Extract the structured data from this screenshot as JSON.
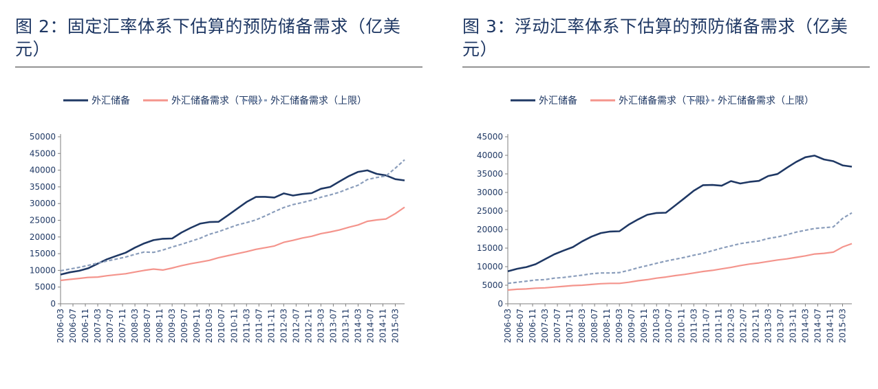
{
  "figures": [
    {
      "title": "图 2：固定汇率体系下估算的预防储备需求（亿美元）"
    },
    {
      "title": "图 3：浮动汇率体系下估算的预防储备需求（亿美元）"
    }
  ],
  "chart_data": [
    {
      "type": "line",
      "title": "图 2：固定汇率体系下估算的预防储备需求（亿美元）",
      "xlabel": "",
      "ylabel": "",
      "ylim": [
        0,
        50000
      ],
      "yticks": [
        "0",
        "5000",
        "10000",
        "15000",
        "20000",
        "25000",
        "30000",
        "35000",
        "40000",
        "45000",
        "50000"
      ],
      "x_tick_labels": [
        "2006-03",
        "2006-07",
        "2006-11",
        "2007-03",
        "2007-07",
        "2007-11",
        "2008-03",
        "2008-07",
        "2008-11",
        "2009-03",
        "2009-07",
        "2009-11",
        "2010-03",
        "2010-07",
        "2010-11",
        "2011-03",
        "2011-07",
        "2011-11",
        "2012-03",
        "2012-07",
        "2012-11",
        "2013-03",
        "2013-07",
        "2013-11",
        "2014-03",
        "2014-07",
        "2014-11",
        "2015-03"
      ],
      "x": [
        "2006-03",
        "2006-06",
        "2006-09",
        "2006-12",
        "2007-03",
        "2007-06",
        "2007-09",
        "2007-12",
        "2008-03",
        "2008-06",
        "2008-09",
        "2008-12",
        "2009-03",
        "2009-06",
        "2009-09",
        "2009-12",
        "2010-03",
        "2010-06",
        "2010-09",
        "2010-12",
        "2011-03",
        "2011-06",
        "2011-09",
        "2011-12",
        "2012-03",
        "2012-06",
        "2012-09",
        "2012-12",
        "2013-03",
        "2013-06",
        "2013-09",
        "2013-12",
        "2014-03",
        "2014-06",
        "2014-09",
        "2014-12",
        "2015-03",
        "2015-06"
      ],
      "legend_position": "top",
      "grid": false,
      "series": [
        {
          "name": "外汇储备",
          "color": "#1f3864",
          "dash": "solid",
          "values": [
            8750,
            9420,
            9880,
            10660,
            12020,
            13330,
            14340,
            15280,
            16820,
            18090,
            19060,
            19460,
            19540,
            21320,
            22730,
            23990,
            24470,
            24540,
            26480,
            28470,
            30470,
            31970,
            32020,
            31810,
            33050,
            32400,
            32850,
            33120,
            34430,
            34970,
            36630,
            38210,
            39480,
            39930,
            38880,
            38430,
            37300,
            36940
          ]
        },
        {
          "name": "外汇储备需求（下限）",
          "color": "#f4948c",
          "dash": "solid",
          "values": [
            7000,
            7300,
            7600,
            7900,
            8000,
            8400,
            8700,
            9000,
            9500,
            10000,
            10400,
            10100,
            10700,
            11400,
            12000,
            12500,
            13000,
            13800,
            14400,
            15000,
            15600,
            16300,
            16800,
            17300,
            18400,
            19000,
            19700,
            20200,
            21000,
            21500,
            22100,
            22900,
            23600,
            24700,
            25100,
            25400,
            27000,
            28900
          ]
        },
        {
          "name": "外汇储备需求（上限）",
          "color": "#8a9dbb",
          "dash": "dashed",
          "values": [
            9900,
            10400,
            10900,
            11500,
            12200,
            12800,
            13400,
            14000,
            14800,
            15500,
            15400,
            16100,
            17000,
            17800,
            18700,
            19600,
            20800,
            21600,
            22600,
            23600,
            24300,
            25100,
            26300,
            27600,
            28800,
            29700,
            30300,
            31000,
            31900,
            32600,
            33400,
            34500,
            35500,
            37200,
            37800,
            38300,
            40600,
            43100
          ]
        }
      ]
    },
    {
      "type": "line",
      "title": "图 3：浮动汇率体系下估算的预防储备需求（亿美元）",
      "xlabel": "",
      "ylabel": "",
      "ylim": [
        0,
        45000
      ],
      "yticks": [
        "0",
        "5000",
        "10000",
        "15000",
        "20000",
        "25000",
        "30000",
        "35000",
        "40000",
        "45000"
      ],
      "x_tick_labels": [
        "2006-03",
        "2006-07",
        "2006-11",
        "2007-03",
        "2007-07",
        "2007-11",
        "2008-03",
        "2008-07",
        "2008-11",
        "2009-03",
        "2009-07",
        "2009-11",
        "2010-03",
        "2010-07",
        "2010-11",
        "2011-03",
        "2011-07",
        "2011-11",
        "2012-03",
        "2012-07",
        "2012-11",
        "2013-03",
        "2013-07",
        "2013-11",
        "2014-03",
        "2014-07",
        "2014-11",
        "2015-03"
      ],
      "x": [
        "2006-03",
        "2006-06",
        "2006-09",
        "2006-12",
        "2007-03",
        "2007-06",
        "2007-09",
        "2007-12",
        "2008-03",
        "2008-06",
        "2008-09",
        "2008-12",
        "2009-03",
        "2009-06",
        "2009-09",
        "2009-12",
        "2010-03",
        "2010-06",
        "2010-09",
        "2010-12",
        "2011-03",
        "2011-06",
        "2011-09",
        "2011-12",
        "2012-03",
        "2012-06",
        "2012-09",
        "2012-12",
        "2013-03",
        "2013-06",
        "2013-09",
        "2013-12",
        "2014-03",
        "2014-06",
        "2014-09",
        "2014-12",
        "2015-03",
        "2015-06"
      ],
      "legend_position": "top",
      "grid": false,
      "series": [
        {
          "name": "外汇储备",
          "color": "#1f3864",
          "dash": "solid",
          "values": [
            8750,
            9420,
            9880,
            10660,
            12020,
            13330,
            14340,
            15280,
            16820,
            18090,
            19060,
            19460,
            19540,
            21320,
            22730,
            23990,
            24470,
            24540,
            26480,
            28470,
            30470,
            31970,
            32020,
            31810,
            33050,
            32400,
            32850,
            33120,
            34430,
            34970,
            36630,
            38210,
            39480,
            39930,
            38880,
            38430,
            37300,
            36940
          ]
        },
        {
          "name": "外汇储备需求（下限）",
          "color": "#f4948c",
          "dash": "solid",
          "values": [
            3700,
            3900,
            4000,
            4200,
            4300,
            4500,
            4700,
            4900,
            5000,
            5200,
            5400,
            5500,
            5500,
            5800,
            6200,
            6500,
            6900,
            7200,
            7600,
            7900,
            8300,
            8700,
            9000,
            9400,
            9800,
            10300,
            10700,
            11000,
            11400,
            11800,
            12100,
            12500,
            12900,
            13400,
            13600,
            13900,
            15300,
            16200
          ]
        },
        {
          "name": "外汇储备需求（上限）",
          "color": "#8a9dbb",
          "dash": "dashed",
          "values": [
            5500,
            5800,
            6100,
            6400,
            6500,
            6900,
            7100,
            7400,
            7700,
            8100,
            8300,
            8300,
            8400,
            9000,
            9700,
            10300,
            10900,
            11500,
            12000,
            12500,
            13100,
            13600,
            14300,
            15000,
            15600,
            16200,
            16600,
            16900,
            17600,
            18000,
            18600,
            19300,
            19800,
            20300,
            20500,
            20700,
            23000,
            24500
          ]
        }
      ]
    }
  ]
}
